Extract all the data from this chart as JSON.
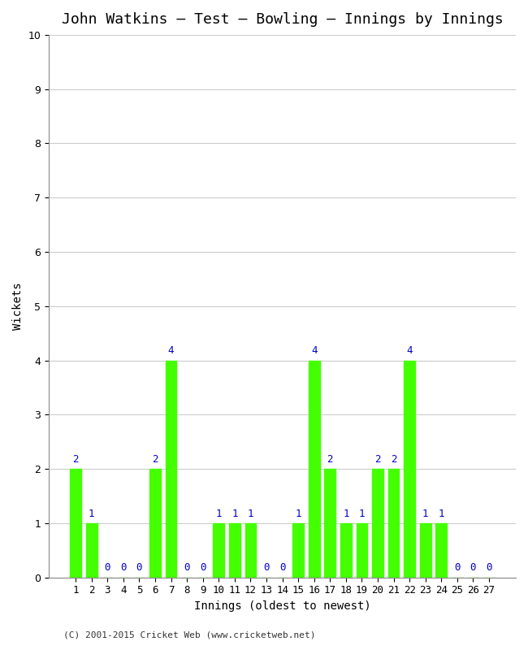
{
  "title": "John Watkins – Test – Bowling – Innings by Innings",
  "xlabel": "Innings (oldest to newest)",
  "ylabel": "Wickets",
  "footnote": "(C) 2001-2015 Cricket Web (www.cricketweb.net)",
  "innings": [
    1,
    2,
    3,
    4,
    5,
    6,
    7,
    8,
    9,
    10,
    11,
    12,
    13,
    14,
    15,
    16,
    17,
    18,
    19,
    20,
    21,
    22,
    23,
    24,
    25,
    26,
    27
  ],
  "wickets": [
    2,
    1,
    0,
    0,
    0,
    2,
    4,
    0,
    0,
    1,
    1,
    1,
    0,
    0,
    1,
    4,
    2,
    1,
    1,
    2,
    2,
    4,
    1,
    1,
    0,
    0,
    0
  ],
  "bar_color": "#44ff00",
  "bar_edge_color": "#44ff00",
  "label_color": "#0000cc",
  "ylim": [
    0,
    10
  ],
  "yticks": [
    0,
    1,
    2,
    3,
    4,
    5,
    6,
    7,
    8,
    9,
    10
  ],
  "grid_color": "#cccccc",
  "bg_color": "#ffffff",
  "title_fontsize": 13,
  "label_fontsize": 10,
  "tick_fontsize": 9,
  "annotation_fontsize": 9,
  "footnote_fontsize": 8
}
